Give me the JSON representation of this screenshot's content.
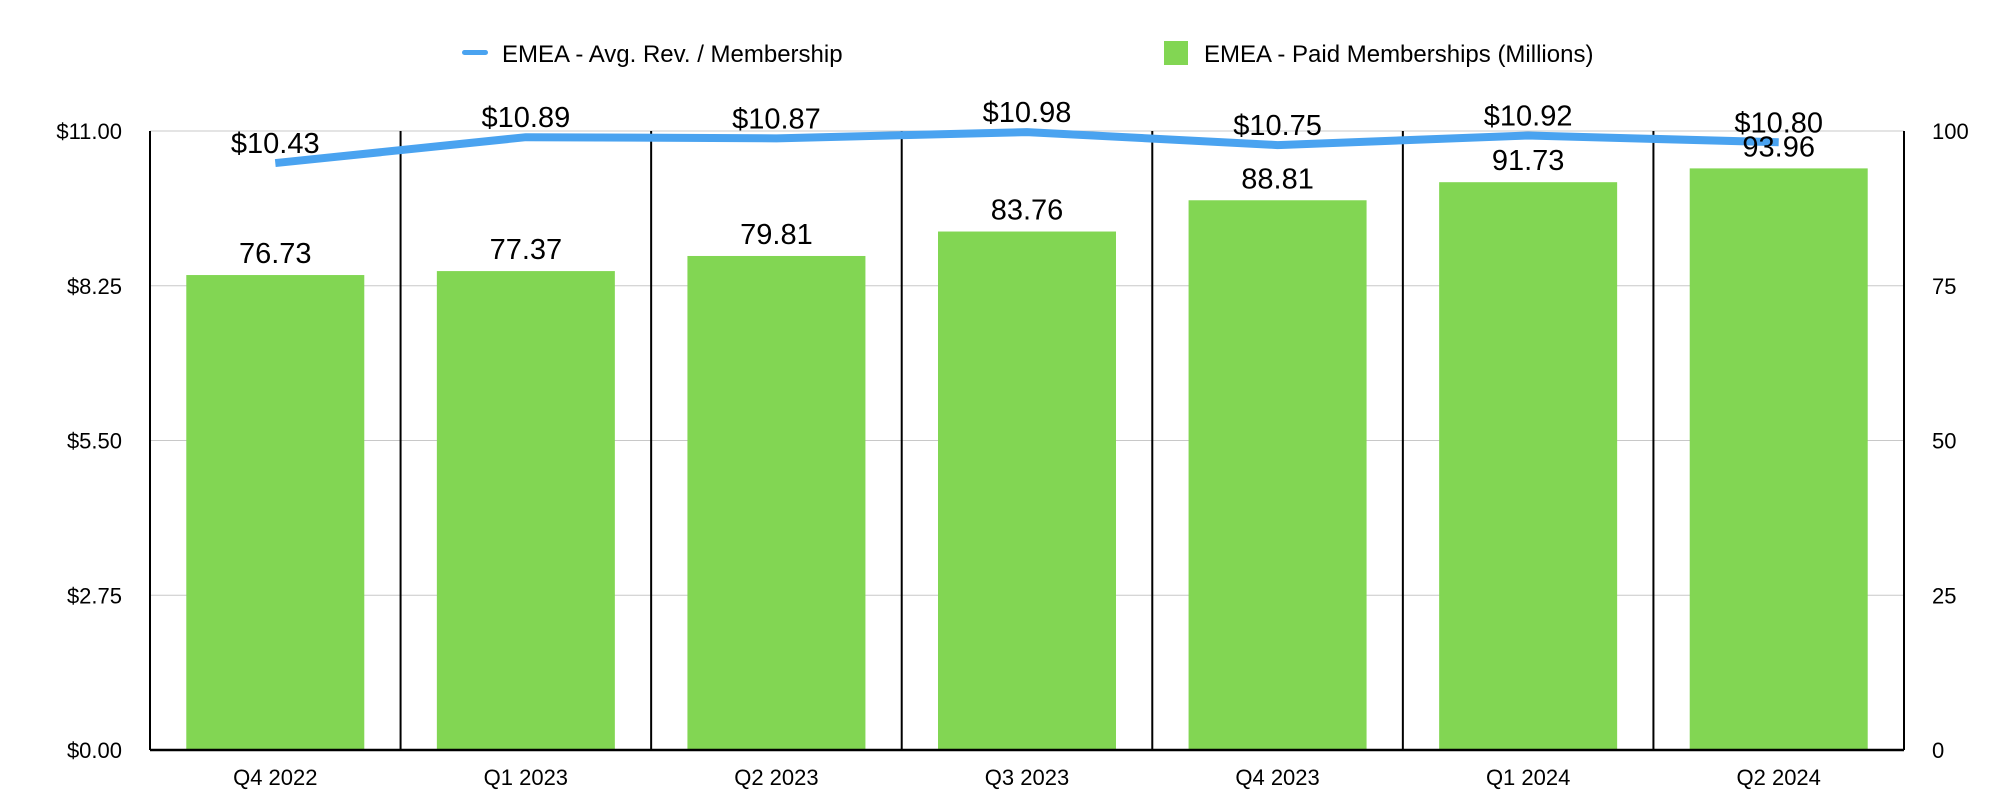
{
  "chart_data": {
    "type": "bar",
    "categories": [
      "Q4 2022",
      "Q1 2023",
      "Q2 2023",
      "Q3 2023",
      "Q4 2023",
      "Q1 2024",
      "Q2 2024"
    ],
    "series": [
      {
        "name": "EMEA - Paid Memberships (Millions)",
        "type": "bar",
        "axis": "right",
        "color": "#82d653",
        "values": [
          76.73,
          77.37,
          79.81,
          83.76,
          88.81,
          91.73,
          93.96
        ],
        "value_labels": [
          "76.73",
          "77.37",
          "79.81",
          "83.76",
          "88.81",
          "91.73",
          "93.96"
        ]
      },
      {
        "name": "EMEA - Avg. Rev. / Membership",
        "type": "line",
        "axis": "left",
        "color": "#4aa3f0",
        "values": [
          10.43,
          10.89,
          10.87,
          10.98,
          10.75,
          10.92,
          10.8
        ],
        "value_labels": [
          "$10.43",
          "$10.89",
          "$10.87",
          "$10.98",
          "$10.75",
          "$10.92",
          "$10.80"
        ]
      }
    ],
    "left_axis": {
      "ylim": [
        0,
        11
      ],
      "ticks": [
        0,
        2.75,
        5.5,
        8.25,
        11
      ],
      "tick_labels": [
        "$0.00",
        "$2.75",
        "$5.50",
        "$8.25",
        "$11.00"
      ]
    },
    "right_axis": {
      "ylim": [
        0,
        100
      ],
      "ticks": [
        0,
        25,
        50,
        75,
        100
      ],
      "tick_labels": [
        "0",
        "25",
        "50",
        "75",
        "100"
      ]
    },
    "grid": true,
    "legend_position": "top-center"
  }
}
